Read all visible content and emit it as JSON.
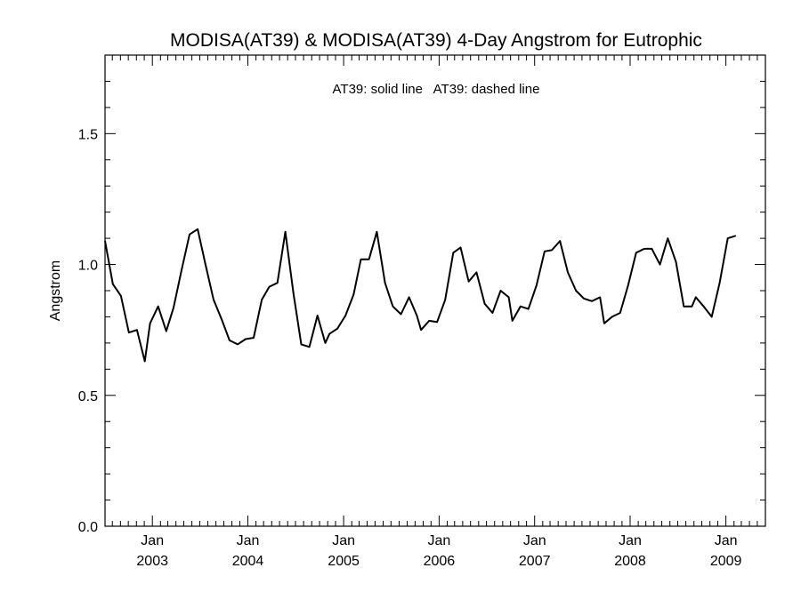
{
  "chart_data": {
    "type": "line",
    "title": "MODISA(AT39) & MODISA(AT39) 4-Day Angstrom for Eutrophic",
    "legend_text": "AT39: solid line   AT39: dashed line",
    "ylabel": "Angstrom",
    "xlabel": "",
    "ylim": [
      0.0,
      1.8
    ],
    "xlim": [
      "2002-07-04",
      "2009-06-01"
    ],
    "y_ticks": [
      "0.0",
      "0.5",
      "1.0",
      "1.5"
    ],
    "x_ticks": [
      {
        "date": "2003-01-01",
        "month": "Jan",
        "year": "2003"
      },
      {
        "date": "2004-01-01",
        "month": "Jan",
        "year": "2004"
      },
      {
        "date": "2005-01-01",
        "month": "Jan",
        "year": "2005"
      },
      {
        "date": "2006-01-01",
        "month": "Jan",
        "year": "2006"
      },
      {
        "date": "2007-01-01",
        "month": "Jan",
        "year": "2007"
      },
      {
        "date": "2008-01-01",
        "month": "Jan",
        "year": "2008"
      },
      {
        "date": "2009-01-01",
        "month": "Jan",
        "year": "2009"
      }
    ],
    "grid": false,
    "series": [
      {
        "style": "solid",
        "color": "#000000",
        "points": [
          [
            "2002-07-04",
            1.09
          ],
          [
            "2002-08-03",
            0.925
          ],
          [
            "2002-09-03",
            0.88
          ],
          [
            "2002-10-03",
            0.74
          ],
          [
            "2002-11-03",
            0.75
          ],
          [
            "2002-12-03",
            0.63
          ],
          [
            "2002-12-23",
            0.775
          ],
          [
            "2003-01-23",
            0.84
          ],
          [
            "2003-02-23",
            0.745
          ],
          [
            "2003-03-23",
            0.835
          ],
          [
            "2003-04-23",
            0.98
          ],
          [
            "2003-05-23",
            1.115
          ],
          [
            "2003-06-23",
            1.135
          ],
          [
            "2003-07-23",
            1.0
          ],
          [
            "2003-08-23",
            0.865
          ],
          [
            "2003-09-23",
            0.79
          ],
          [
            "2003-10-23",
            0.71
          ],
          [
            "2003-11-23",
            0.695
          ],
          [
            "2003-12-23",
            0.715
          ],
          [
            "2004-01-23",
            0.72
          ],
          [
            "2004-02-23",
            0.865
          ],
          [
            "2004-03-23",
            0.915
          ],
          [
            "2004-04-23",
            0.93
          ],
          [
            "2004-05-23",
            1.125
          ],
          [
            "2004-06-23",
            0.89
          ],
          [
            "2004-07-23",
            0.695
          ],
          [
            "2004-08-23",
            0.685
          ],
          [
            "2004-09-23",
            0.805
          ],
          [
            "2004-10-23",
            0.7
          ],
          [
            "2004-11-08",
            0.735
          ],
          [
            "2004-12-08",
            0.755
          ],
          [
            "2005-01-08",
            0.805
          ],
          [
            "2005-02-08",
            0.885
          ],
          [
            "2005-03-08",
            1.02
          ],
          [
            "2005-04-08",
            1.02
          ],
          [
            "2005-05-08",
            1.125
          ],
          [
            "2005-06-08",
            0.93
          ],
          [
            "2005-07-08",
            0.84
          ],
          [
            "2005-08-08",
            0.81
          ],
          [
            "2005-09-08",
            0.875
          ],
          [
            "2005-10-08",
            0.805
          ],
          [
            "2005-10-24",
            0.75
          ],
          [
            "2005-11-24",
            0.785
          ],
          [
            "2005-12-24",
            0.78
          ],
          [
            "2006-01-24",
            0.865
          ],
          [
            "2006-02-24",
            1.045
          ],
          [
            "2006-03-24",
            1.065
          ],
          [
            "2006-04-24",
            0.935
          ],
          [
            "2006-05-24",
            0.97
          ],
          [
            "2006-06-24",
            0.85
          ],
          [
            "2006-07-24",
            0.815
          ],
          [
            "2006-08-24",
            0.9
          ],
          [
            "2006-09-24",
            0.875
          ],
          [
            "2006-10-08",
            0.785
          ],
          [
            "2006-11-08",
            0.84
          ],
          [
            "2006-12-08",
            0.83
          ],
          [
            "2007-01-08",
            0.92
          ],
          [
            "2007-02-08",
            1.05
          ],
          [
            "2007-03-08",
            1.055
          ],
          [
            "2007-04-08",
            1.09
          ],
          [
            "2007-05-08",
            0.97
          ],
          [
            "2007-06-08",
            0.9
          ],
          [
            "2007-07-08",
            0.87
          ],
          [
            "2007-08-08",
            0.86
          ],
          [
            "2007-09-08",
            0.875
          ],
          [
            "2007-09-24",
            0.775
          ],
          [
            "2007-10-24",
            0.8
          ],
          [
            "2007-11-24",
            0.815
          ],
          [
            "2007-12-24",
            0.92
          ],
          [
            "2008-01-24",
            1.045
          ],
          [
            "2008-02-24",
            1.06
          ],
          [
            "2008-03-24",
            1.06
          ],
          [
            "2008-04-24",
            1.0
          ],
          [
            "2008-05-24",
            1.1
          ],
          [
            "2008-06-24",
            1.01
          ],
          [
            "2008-07-24",
            0.84
          ],
          [
            "2008-08-24",
            0.84
          ],
          [
            "2008-09-08",
            0.875
          ],
          [
            "2008-10-08",
            0.84
          ],
          [
            "2008-11-08",
            0.8
          ],
          [
            "2008-12-08",
            0.93
          ],
          [
            "2009-01-08",
            1.1
          ],
          [
            "2009-02-08",
            1.11
          ]
        ]
      }
    ]
  }
}
